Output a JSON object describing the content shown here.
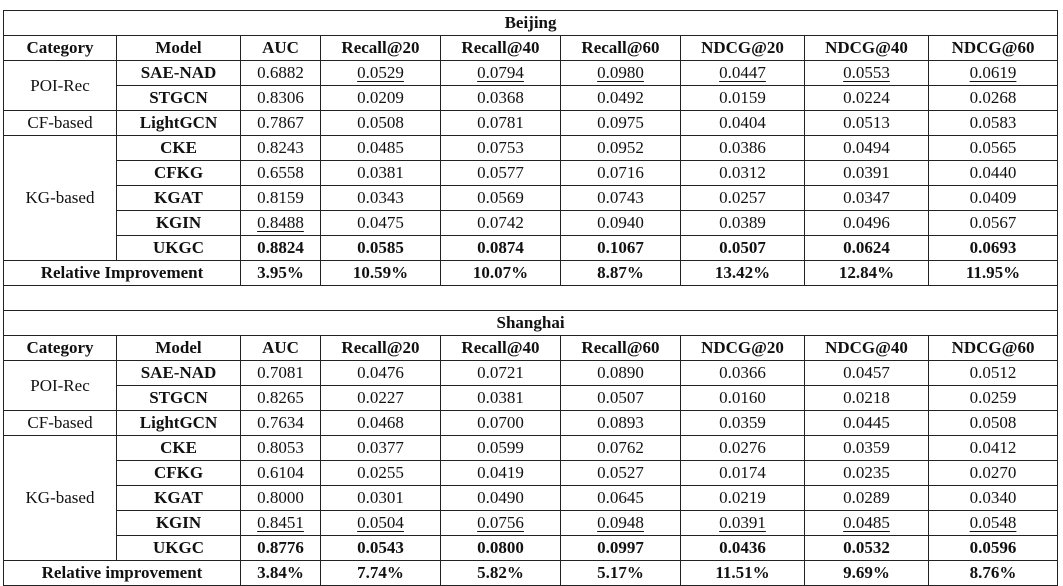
{
  "columns": [
    "Category",
    "Model",
    "AUC",
    "Recall@20",
    "Recall@40",
    "Recall@60",
    "NDCG@20",
    "NDCG@40",
    "NDCG@60"
  ],
  "sections": [
    {
      "city": "Beijing",
      "categories": [
        "POI-Rec",
        "CF-based",
        "KG-based"
      ],
      "rows": [
        {
          "model": "SAE-NAD",
          "values": [
            "0.6882",
            "0.0529",
            "0.0794",
            "0.0980",
            "0.0447",
            "0.0553",
            "0.0619"
          ]
        },
        {
          "model": "STGCN",
          "values": [
            "0.8306",
            "0.0209",
            "0.0368",
            "0.0492",
            "0.0159",
            "0.0224",
            "0.0268"
          ]
        },
        {
          "model": "LightGCN",
          "values": [
            "0.7867",
            "0.0508",
            "0.0781",
            "0.0975",
            "0.0404",
            "0.0513",
            "0.0583"
          ]
        },
        {
          "model": "CKE",
          "values": [
            "0.8243",
            "0.0485",
            "0.0753",
            "0.0952",
            "0.0386",
            "0.0494",
            "0.0565"
          ]
        },
        {
          "model": "CFKG",
          "values": [
            "0.6558",
            "0.0381",
            "0.0577",
            "0.0716",
            "0.0312",
            "0.0391",
            "0.0440"
          ]
        },
        {
          "model": "KGAT",
          "values": [
            "0.8159",
            "0.0343",
            "0.0569",
            "0.0743",
            "0.0257",
            "0.0347",
            "0.0409"
          ]
        },
        {
          "model": "KGIN",
          "values": [
            "0.8488",
            "0.0475",
            "0.0742",
            "0.0940",
            "0.0389",
            "0.0496",
            "0.0567"
          ]
        },
        {
          "model": "UKGC",
          "values": [
            "0.8824",
            "0.0585",
            "0.0874",
            "0.1067",
            "0.0507",
            "0.0624",
            "0.0693"
          ]
        }
      ],
      "improvement_label": "Relative Improvement",
      "improvement": [
        "3.95%",
        "10.59%",
        "10.07%",
        "8.87%",
        "13.42%",
        "12.84%",
        "11.95%"
      ]
    },
    {
      "city": "Shanghai",
      "categories": [
        "POI-Rec",
        "CF-based",
        "KG-based"
      ],
      "rows": [
        {
          "model": "SAE-NAD",
          "values": [
            "0.7081",
            "0.0476",
            "0.0721",
            "0.0890",
            "0.0366",
            "0.0457",
            "0.0512"
          ]
        },
        {
          "model": "STGCN",
          "values": [
            "0.8265",
            "0.0227",
            "0.0381",
            "0.0507",
            "0.0160",
            "0.0218",
            "0.0259"
          ]
        },
        {
          "model": "LightGCN",
          "values": [
            "0.7634",
            "0.0468",
            "0.0700",
            "0.0893",
            "0.0359",
            "0.0445",
            "0.0508"
          ]
        },
        {
          "model": "CKE",
          "values": [
            "0.8053",
            "0.0377",
            "0.0599",
            "0.0762",
            "0.0276",
            "0.0359",
            "0.0412"
          ]
        },
        {
          "model": "CFKG",
          "values": [
            "0.6104",
            "0.0255",
            "0.0419",
            "0.0527",
            "0.0174",
            "0.0235",
            "0.0270"
          ]
        },
        {
          "model": "KGAT",
          "values": [
            "0.8000",
            "0.0301",
            "0.0490",
            "0.0645",
            "0.0219",
            "0.0289",
            "0.0340"
          ]
        },
        {
          "model": "KGIN",
          "values": [
            "0.8451",
            "0.0504",
            "0.0756",
            "0.0948",
            "0.0391",
            "0.0485",
            "0.0548"
          ]
        },
        {
          "model": "UKGC",
          "values": [
            "0.8776",
            "0.0543",
            "0.0800",
            "0.0997",
            "0.0436",
            "0.0532",
            "0.0596"
          ]
        }
      ],
      "improvement_label": "Relative improvement",
      "improvement": [
        "3.84%",
        "7.74%",
        "5.82%",
        "5.17%",
        "11.51%",
        "9.69%",
        "8.76%"
      ]
    }
  ]
}
